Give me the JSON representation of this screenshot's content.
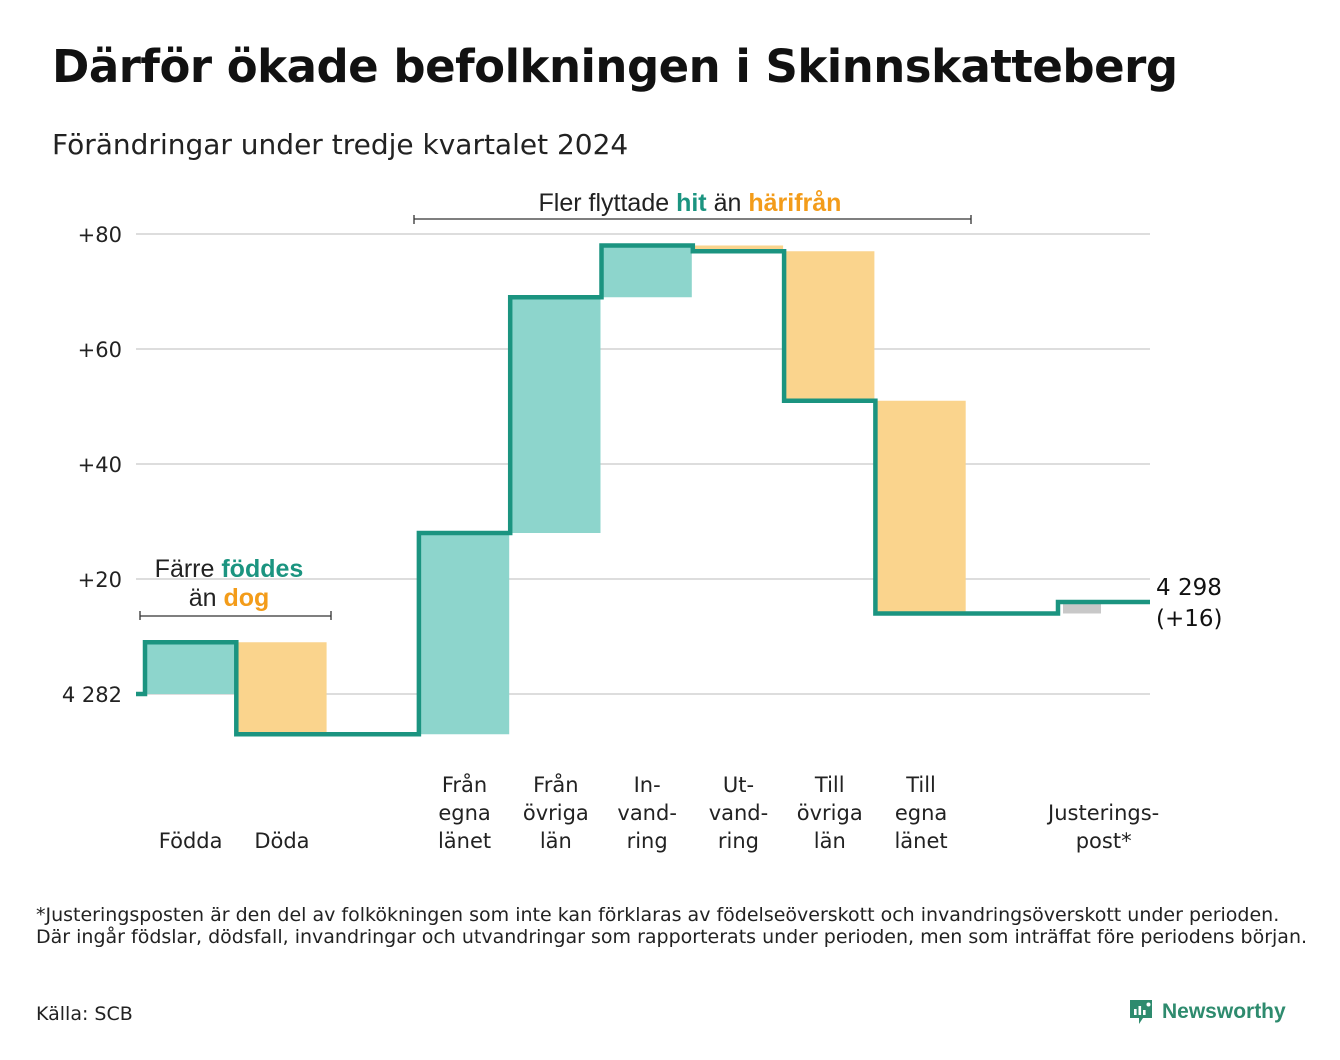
{
  "title": "Därför ökade befolkningen i Skinnskatteberg",
  "subtitle": "Förändringar under tredje kvartalet 2024",
  "colors": {
    "increase": "#8dd5cc",
    "decrease": "#fad48d",
    "adjustment": "#c8c8c8",
    "line": "#1b9480",
    "accent_teal": "#1b9480",
    "accent_orange": "#f39c1a",
    "grid": "#dddddd"
  },
  "annotations": {
    "birth": {
      "line1": "Färre",
      "line1_bold": "föddes",
      "line2": "än",
      "line2_bold": "dog"
    },
    "migration": {
      "before": "Fler flyttade",
      "bold1": "hit",
      "middle": "än",
      "bold2": "härifrån"
    }
  },
  "end_label": {
    "value": "4 298",
    "change": "(+16)"
  },
  "chart_data": {
    "type": "waterfall",
    "title": "Därför ökade befolkningen i Skinnskatteberg",
    "subtitle": "Förändringar under tredje kvartalet 2024",
    "start_value": 4282,
    "end_value": 4298,
    "yticks": [
      {
        "value": 0,
        "label": "4 282"
      },
      {
        "value": 20,
        "label": "+20"
      },
      {
        "value": 40,
        "label": "+40"
      },
      {
        "value": 60,
        "label": "+60"
      },
      {
        "value": 80,
        "label": "+80"
      }
    ],
    "ylim": [
      -12,
      84
    ],
    "grid": true,
    "categories": [
      {
        "label": [
          "Födda"
        ],
        "change": 9,
        "kind": "increase"
      },
      {
        "label": [
          "Döda"
        ],
        "change": -16,
        "kind": "decrease"
      },
      {
        "label": [],
        "change": 0,
        "kind": "gap"
      },
      {
        "label": [
          "Från",
          "egna",
          "länet"
        ],
        "change": 35,
        "kind": "increase"
      },
      {
        "label": [
          "Från",
          "övriga",
          "län"
        ],
        "change": 41,
        "kind": "increase"
      },
      {
        "label": [
          "In-",
          "vand-",
          "ring"
        ],
        "change": 9,
        "kind": "increase"
      },
      {
        "label": [
          "Ut-",
          "vand-",
          "ring"
        ],
        "change": -1,
        "kind": "decrease"
      },
      {
        "label": [
          "Till",
          "övriga",
          "län"
        ],
        "change": -26,
        "kind": "decrease"
      },
      {
        "label": [
          "Till",
          "egna",
          "länet"
        ],
        "change": -37,
        "kind": "decrease"
      },
      {
        "label": [],
        "change": 0,
        "kind": "gap"
      },
      {
        "label": [
          "Justerings-",
          "post*"
        ],
        "change": 2,
        "kind": "adjustment"
      }
    ]
  },
  "footnote": "*Justeringsposten är den del av folkökningen som inte kan förklaras av födelseöverskott och invandringsöverskott under perioden. Där ingår födslar, dödsfall, invandringar och utvandringar som rapporterats under perioden, men som inträffat före periodens början.",
  "source": "Källa: SCB",
  "brand": "Newsworthy"
}
